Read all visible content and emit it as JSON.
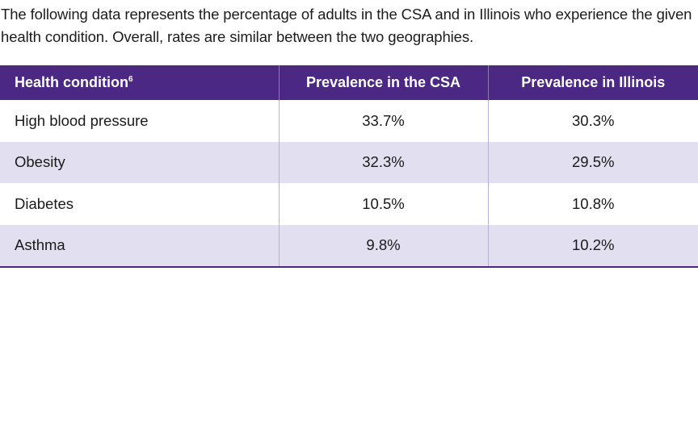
{
  "intro_text": "The following data represents the percentage of adults in the CSA and in Illinois who experience the given health condition. Overall, rates are similar between the two geographies.",
  "table": {
    "headers": {
      "condition": "Health condition",
      "condition_footnote": "6",
      "csa": "Prevalence in the CSA",
      "illinois": "Prevalence in Illinois"
    },
    "rows": [
      {
        "condition": "High blood pressure",
        "csa": "33.7%",
        "illinois": "30.3%"
      },
      {
        "condition": "Obesity",
        "csa": "32.3%",
        "illinois": "29.5%"
      },
      {
        "condition": "Diabetes",
        "csa": "10.5%",
        "illinois": "10.8%"
      },
      {
        "condition": "Asthma",
        "csa": "9.8%",
        "illinois": "10.2%"
      }
    ]
  },
  "colors": {
    "header_background": "#4b2884",
    "striped_row_background": "#e2dff0"
  }
}
